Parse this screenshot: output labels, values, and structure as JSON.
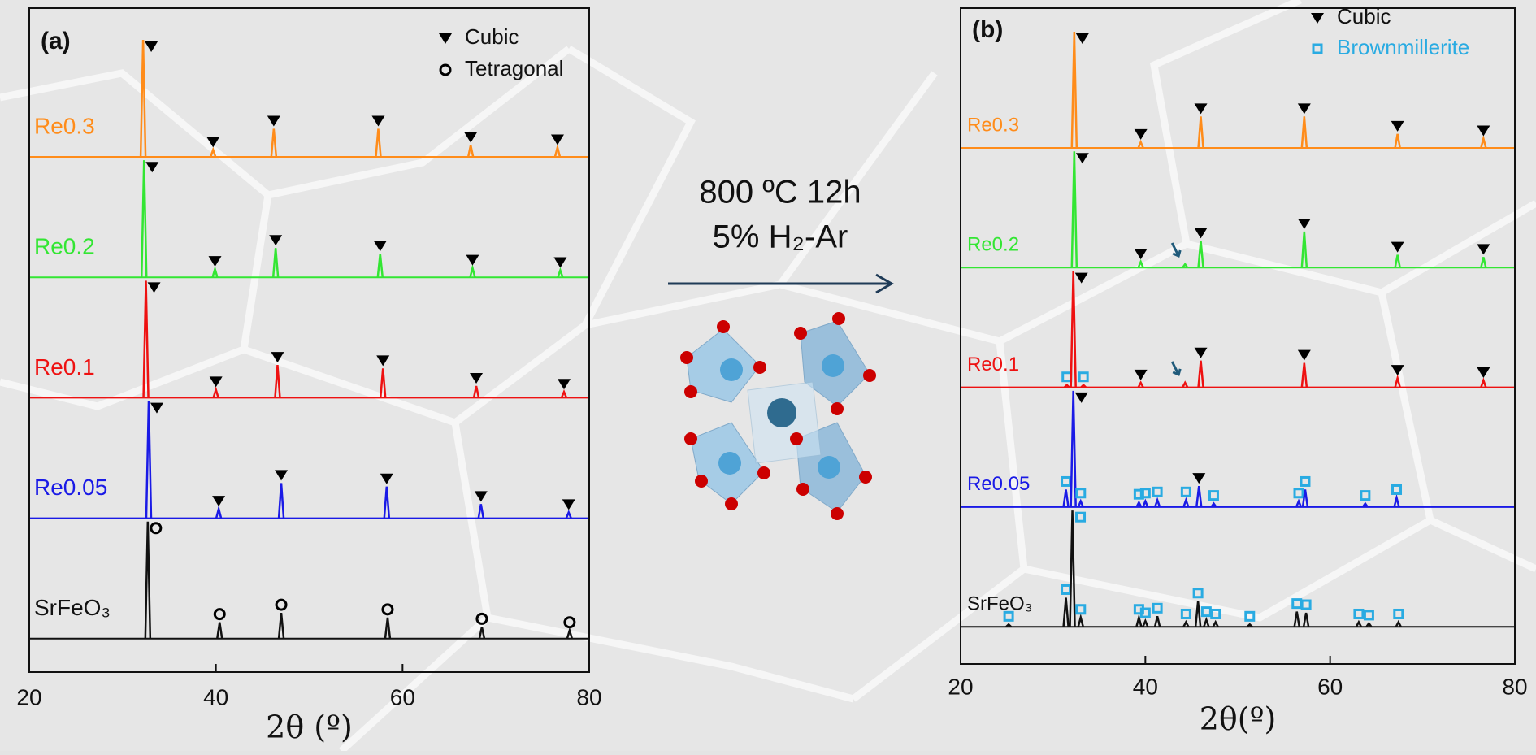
{
  "chart_data": [
    {
      "type": "spectrum",
      "label": "(a)",
      "xlabel": "2θ (º)",
      "xlim": [
        20,
        80
      ],
      "xticks": [
        20,
        40,
        60,
        80
      ],
      "phases": [
        {
          "name": "Cubic",
          "color": "#000000"
        },
        {
          "name": "Tetragonal",
          "color": "#000000"
        }
      ],
      "series": [
        {
          "name": "Re0.3",
          "color": "#ff8c1a",
          "x": [
            32.2,
            39.7,
            46.2,
            57.4,
            67.3,
            76.6
          ],
          "values": [
            100,
            6,
            24,
            24,
            10,
            8
          ],
          "phase": [
            0,
            0,
            0,
            0,
            0,
            0
          ]
        },
        {
          "name": "Re0.2",
          "color": "#33e633",
          "x": [
            32.3,
            39.9,
            46.4,
            57.6,
            67.5,
            76.9
          ],
          "values": [
            100,
            7,
            25,
            20,
            8,
            6
          ],
          "phase": [
            0,
            0,
            0,
            0,
            0,
            0
          ]
        },
        {
          "name": "Re0.1",
          "color": "#ee1111",
          "x": [
            32.5,
            40.0,
            46.6,
            57.9,
            67.9,
            77.3
          ],
          "values": [
            100,
            7,
            28,
            25,
            10,
            5
          ],
          "phase": [
            0,
            0,
            0,
            0,
            0,
            0
          ]
        },
        {
          "name": "Re0.05",
          "color": "#1a1ae6",
          "x": [
            32.8,
            40.3,
            47.0,
            58.3,
            68.4,
            77.8
          ],
          "values": [
            100,
            8,
            30,
            27,
            12,
            5
          ],
          "phase": [
            0,
            0,
            0,
            0,
            0,
            0
          ]
        },
        {
          "name": "SrFeO₃",
          "color": "#111111",
          "x": [
            32.7,
            40.4,
            47.0,
            58.4,
            68.5,
            77.9
          ],
          "values": [
            100,
            14,
            22,
            18,
            10,
            7
          ],
          "phase": [
            1,
            1,
            1,
            1,
            1,
            1
          ]
        }
      ]
    },
    {
      "type": "spectrum",
      "label": "(b)",
      "xlabel": "2θ(º)",
      "xlim": [
        20,
        80
      ],
      "xticks": [
        20,
        40,
        60,
        80
      ],
      "phases": [
        {
          "name": "Cubic",
          "color": "#000000"
        },
        {
          "name": "Brownmillerite",
          "color": "#29abe2"
        }
      ],
      "series": [
        {
          "name": "Re0.3",
          "color": "#ff8c1a",
          "x": [
            32.3,
            39.5,
            46.0,
            57.2,
            67.3,
            76.6
          ],
          "values": [
            100,
            5,
            27,
            27,
            12,
            8
          ],
          "phase": [
            0,
            0,
            0,
            0,
            0,
            0
          ]
        },
        {
          "name": "Re0.2",
          "color": "#33e633",
          "x": [
            32.3,
            39.5,
            44.3,
            46.0,
            57.2,
            67.3,
            76.6
          ],
          "values": [
            100,
            5,
            3,
            23,
            31,
            11,
            9
          ],
          "phase": [
            0,
            0,
            2,
            0,
            0,
            0,
            0
          ]
        },
        {
          "name": "Re0.1",
          "color": "#ee1111",
          "x": [
            31.5,
            32.2,
            33.3,
            39.5,
            44.3,
            46.0,
            57.2,
            67.3,
            76.6
          ],
          "values": [
            2,
            100,
            2,
            4,
            4,
            23,
            21,
            8,
            6
          ],
          "phase": [
            1,
            0,
            1,
            0,
            2,
            0,
            0,
            0,
            0
          ]
        },
        {
          "name": "Re0.05",
          "color": "#1a1ae6",
          "x": [
            31.4,
            32.2,
            33.0,
            39.3,
            40.0,
            41.3,
            44.4,
            45.8,
            47.4,
            56.6,
            57.3,
            63.8,
            67.2
          ],
          "values": [
            15,
            100,
            5,
            4,
            5,
            6,
            6,
            18,
            3,
            5,
            15,
            3,
            8
          ],
          "phase": [
            1,
            0,
            1,
            1,
            1,
            1,
            1,
            0,
            1,
            1,
            1,
            1,
            1
          ]
        },
        {
          "name": "SrFeO₃",
          "color": "#111111",
          "x": [
            25.2,
            31.4,
            32.1,
            33.0,
            39.3,
            40.0,
            41.3,
            44.4,
            45.7,
            46.6,
            47.6,
            51.3,
            56.4,
            57.4,
            63.1,
            64.2,
            67.4
          ],
          "values": [
            2,
            25,
            100,
            8,
            8,
            5,
            9,
            4,
            22,
            6,
            4,
            2,
            13,
            12,
            4,
            3,
            4
          ],
          "phase": [
            1,
            1,
            1,
            1,
            1,
            1,
            1,
            1,
            1,
            1,
            1,
            1,
            1,
            1,
            1,
            1,
            1
          ]
        }
      ]
    }
  ],
  "annotation": {
    "line1": "800 ºC 12h",
    "line2": "5% H₂-Ar"
  }
}
